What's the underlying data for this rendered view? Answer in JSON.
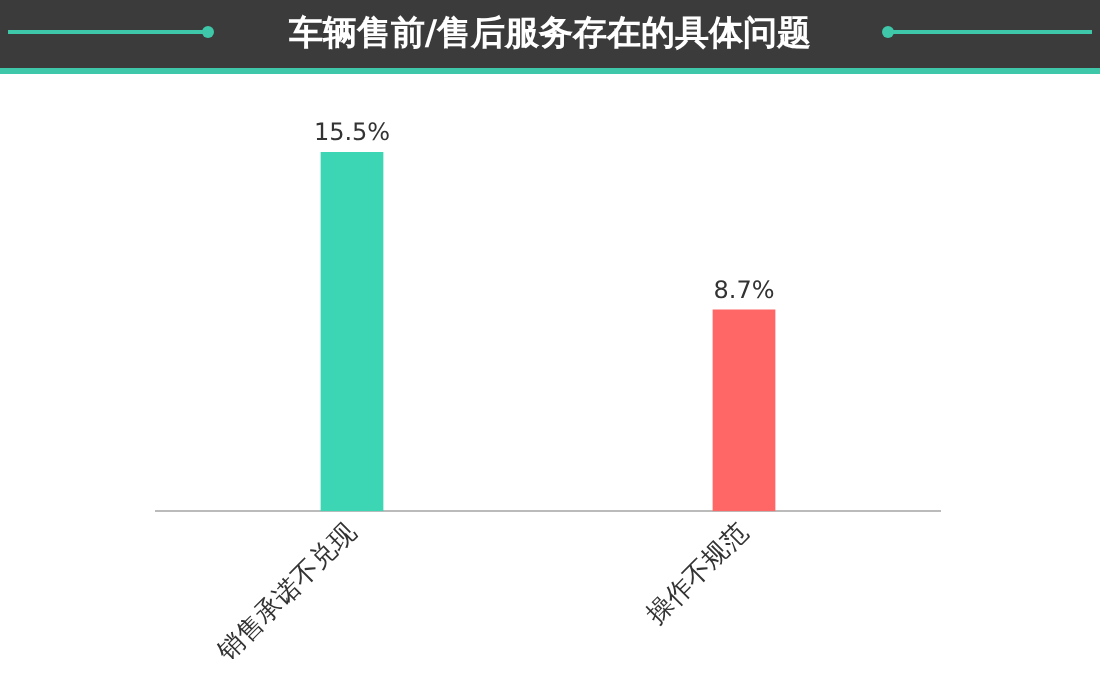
{
  "chart_data": {
    "type": "bar",
    "title": "车辆售前/售后服务存在的具体问题",
    "categories": [
      "销售承诺不兑现",
      "操作不规范"
    ],
    "values": [
      15.5,
      8.7
    ],
    "value_labels": [
      "15.5%",
      "8.7%"
    ],
    "colors": [
      "#3dd6b5",
      "#ff6666"
    ],
    "tick_labels": "x",
    "grid": false,
    "legend": false
  }
}
